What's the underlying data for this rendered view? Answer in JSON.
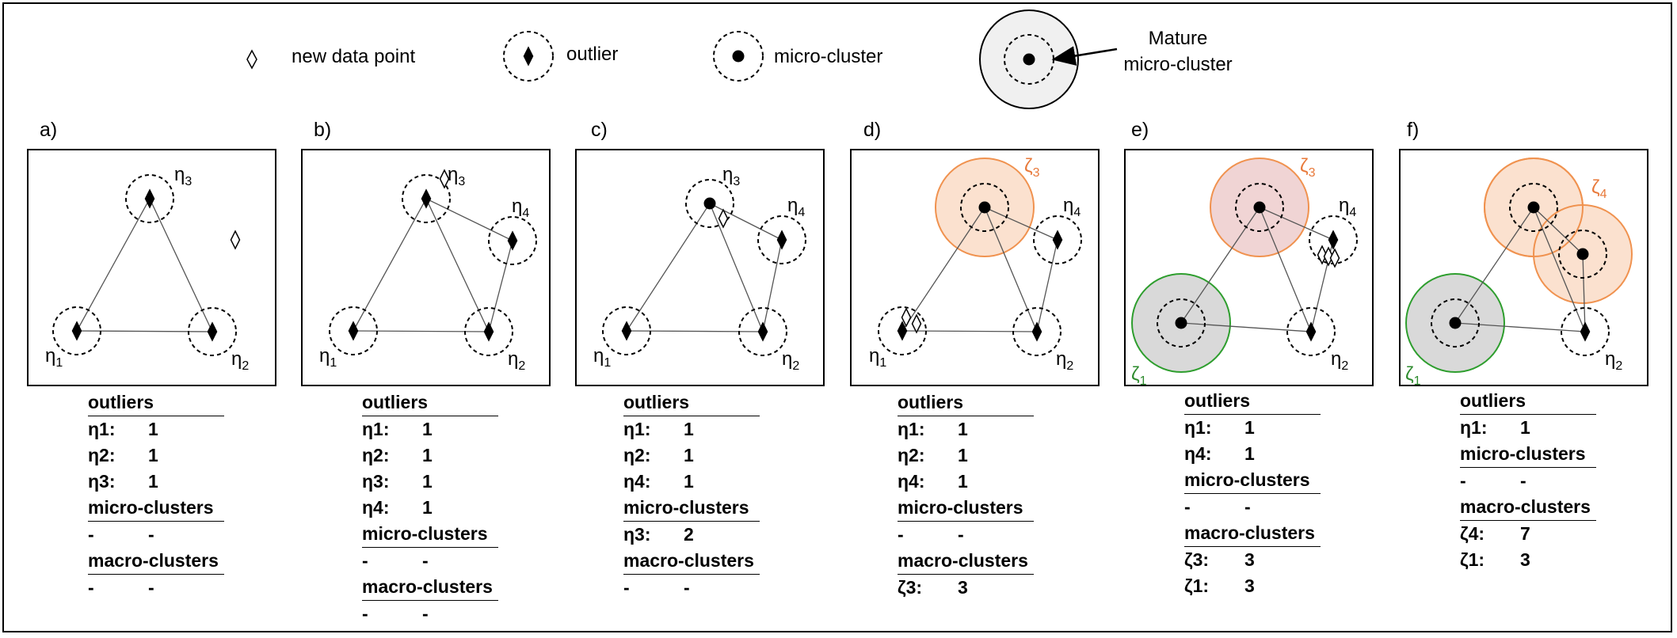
{
  "legend": {
    "new_point": "new data point",
    "outlier": "outlier",
    "micro_cluster": "micro-cluster",
    "mature_line1": "Mature",
    "mature_line2": "micro-cluster"
  },
  "colors": {
    "orange_fill": "#fbe1cf",
    "orange_stroke": "#f0924f",
    "orange_text": "#e8793a",
    "pink_fill": "#f0d4d4",
    "green_fill": "#d9d9d9",
    "green_stroke": "#2e9e2e",
    "green_text": "#2e8b2e",
    "mature_fill": "#f0f0f0"
  },
  "panels": [
    {
      "letter": "a)",
      "labels": [
        "η3",
        "η1",
        "η2"
      ],
      "sections": [
        {
          "title": "outliers",
          "rows": [
            {
              "k": "η1:",
              "v": "1"
            },
            {
              "k": "η2:",
              "v": "1"
            },
            {
              "k": "η3:",
              "v": "1"
            }
          ]
        },
        {
          "title": "micro-clusters",
          "rows": [
            {
              "k": "-",
              "v": "-"
            }
          ]
        },
        {
          "title": "macro-clusters",
          "rows": [
            {
              "k": "-",
              "v": "-"
            }
          ]
        }
      ]
    },
    {
      "letter": "b)",
      "labels": [
        "η3",
        "η4",
        "η1",
        "η2"
      ],
      "sections": [
        {
          "title": "outliers",
          "rows": [
            {
              "k": "η1:",
              "v": "1"
            },
            {
              "k": "η2:",
              "v": "1"
            },
            {
              "k": "η3:",
              "v": "1"
            },
            {
              "k": "η4:",
              "v": "1"
            }
          ]
        },
        {
          "title": "micro-clusters",
          "rows": [
            {
              "k": "-",
              "v": "-"
            }
          ]
        },
        {
          "title": "macro-clusters",
          "rows": [
            {
              "k": "-",
              "v": "-"
            }
          ]
        }
      ]
    },
    {
      "letter": "c)",
      "labels": [
        "η3",
        "η4",
        "η1",
        "η2"
      ],
      "sections": [
        {
          "title": "outliers",
          "rows": [
            {
              "k": "η1:",
              "v": "1"
            },
            {
              "k": "η2:",
              "v": "1"
            },
            {
              "k": "η4:",
              "v": "1"
            }
          ]
        },
        {
          "title": "micro-clusters",
          "rows": [
            {
              "k": "η3:",
              "v": "2"
            }
          ]
        },
        {
          "title": "macro-clusters",
          "rows": [
            {
              "k": "-",
              "v": "-"
            }
          ]
        }
      ]
    },
    {
      "letter": "d)",
      "labels": [
        "ζ3",
        "η4",
        "η1",
        "η2"
      ],
      "sections": [
        {
          "title": "outliers",
          "rows": [
            {
              "k": "η1:",
              "v": "1"
            },
            {
              "k": "η2:",
              "v": "1"
            },
            {
              "k": "η4:",
              "v": "1"
            }
          ]
        },
        {
          "title": "micro-clusters",
          "rows": [
            {
              "k": "-",
              "v": "-"
            }
          ]
        },
        {
          "title": "macro-clusters",
          "rows": [
            {
              "k": "ζ3:",
              "v": "3"
            }
          ]
        }
      ]
    },
    {
      "letter": "e)",
      "labels": [
        "ζ3",
        "η4",
        "ζ1",
        "η2"
      ],
      "sections": [
        {
          "title": "outliers",
          "rows": [
            {
              "k": "η1:",
              "v": "1"
            },
            {
              "k": "η4:",
              "v": "1"
            }
          ]
        },
        {
          "title": "micro-clusters",
          "rows": [
            {
              "k": "-",
              "v": "-"
            }
          ]
        },
        {
          "title": "macro-clusters",
          "rows": [
            {
              "k": "ζ3:",
              "v": "3"
            },
            {
              "k": "ζ1:",
              "v": "3"
            }
          ]
        }
      ]
    },
    {
      "letter": "f)",
      "labels": [
        "ζ4",
        "ζ1",
        "η2"
      ],
      "sections": [
        {
          "title": "outliers",
          "rows": [
            {
              "k": "η1:",
              "v": "1"
            }
          ]
        },
        {
          "title": "micro-clusters",
          "rows": [
            {
              "k": "-",
              "v": "-"
            }
          ]
        },
        {
          "title": "macro-clusters",
          "rows": [
            {
              "k": "ζ4:",
              "v": "7"
            },
            {
              "k": "ζ1:",
              "v": "3"
            }
          ]
        }
      ]
    }
  ]
}
